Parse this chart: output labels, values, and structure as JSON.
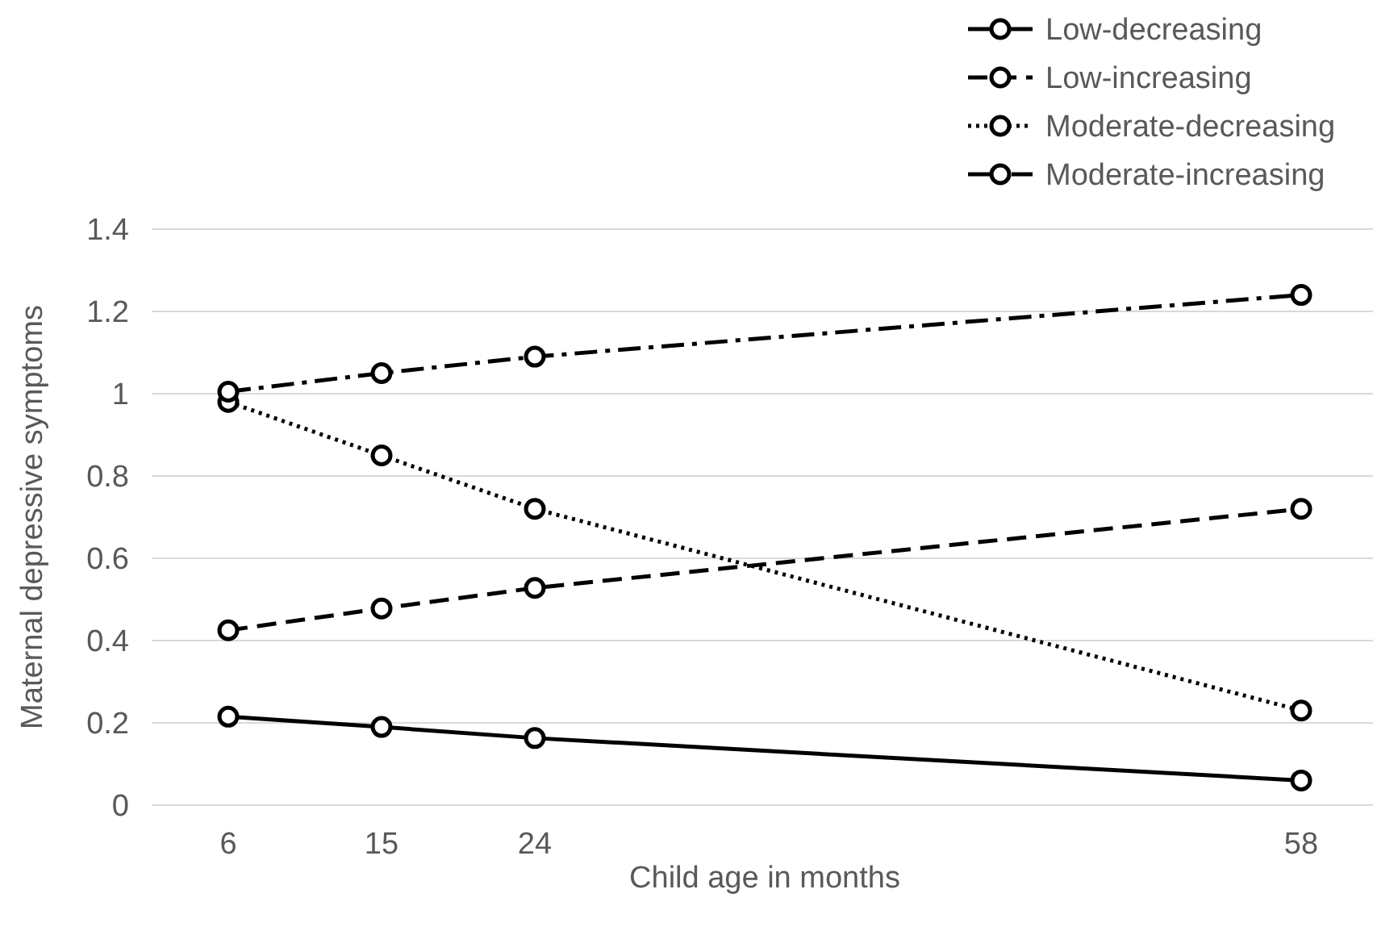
{
  "chart_data": {
    "type": "line",
    "xlabel": "Child age in months",
    "ylabel": "Maternal depressive symptoms",
    "categories": [
      "6",
      "15",
      "24",
      null,
      null,
      null,
      null,
      "58"
    ],
    "series": [
      {
        "name": "Low-decreasing",
        "color": "#000000",
        "line_style": "solid",
        "values": [
          0.215,
          0.19,
          0.163,
          null,
          null,
          null,
          null,
          0.06
        ]
      },
      {
        "name": "Low-increasing",
        "color": "#000000",
        "line_style": "dashed",
        "values": [
          0.425,
          0.478,
          0.528,
          null,
          null,
          null,
          null,
          0.72
        ]
      },
      {
        "name": "Moderate-decreasing",
        "color": "#000000",
        "line_style": "dotted",
        "values": [
          0.98,
          0.85,
          0.72,
          null,
          null,
          null,
          null,
          0.23
        ]
      },
      {
        "name": "Moderate-increasing",
        "color": "#000000",
        "line_style": "dashdot",
        "values": [
          1.005,
          1.05,
          1.09,
          null,
          null,
          null,
          null,
          1.24
        ]
      }
    ],
    "ylim": [
      0,
      1.4
    ],
    "yticks": [
      0,
      {
        "value": 0.2,
        "label": "0.2"
      },
      {
        "value": 0.4,
        "label": "0.4"
      },
      {
        "value": 0.6,
        "label": "0.6"
      },
      {
        "value": 0.8,
        "label": "0.8"
      },
      1,
      {
        "value": 1.2,
        "label": "1.2"
      },
      {
        "value": 1.4,
        "label": "1.4"
      }
    ],
    "grid": "y",
    "legend": "top right",
    "marker": "circle"
  }
}
